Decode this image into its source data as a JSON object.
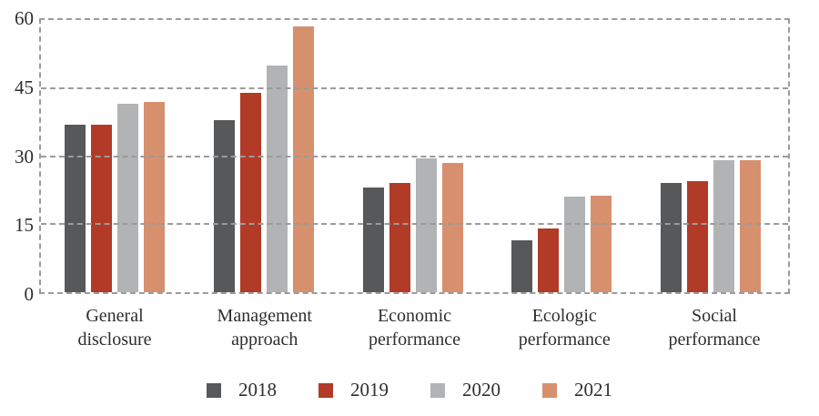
{
  "chart_data": {
    "type": "bar",
    "title": "",
    "xlabel": "",
    "ylabel": "",
    "categories": [
      "General disclosure",
      "Management approach",
      "Economic performance",
      "Ecologic performance",
      "Social performance"
    ],
    "category_lines": [
      [
        "General",
        "disclosure"
      ],
      [
        "Management",
        "approach"
      ],
      [
        "Economic",
        "performance"
      ],
      [
        "Ecologic",
        "performance"
      ],
      [
        "Social",
        "performance"
      ]
    ],
    "series": [
      {
        "name": "2018",
        "color": "#57585a",
        "values": [
          37,
          38,
          23,
          11.5,
          24
        ]
      },
      {
        "name": "2019",
        "color": "#b13b27",
        "values": [
          37,
          44,
          24,
          14,
          24.5
        ]
      },
      {
        "name": "2020",
        "color": "#b1b3b5",
        "values": [
          41.5,
          50,
          29.5,
          21,
          29
        ]
      },
      {
        "name": "2021",
        "color": "#d7906e",
        "values": [
          42,
          58.5,
          28.5,
          21.3,
          29
        ]
      }
    ],
    "y_axis": {
      "ticks": [
        0,
        15,
        30,
        45,
        60
      ],
      "min": 0,
      "max": 60
    },
    "grid": "dashed-horizontal",
    "frame": "dashed",
    "grid_color": "#9b9b9b",
    "legend_position": "bottom",
    "legend_entries": [
      "2018",
      "2019",
      "2020",
      "2021"
    ]
  }
}
